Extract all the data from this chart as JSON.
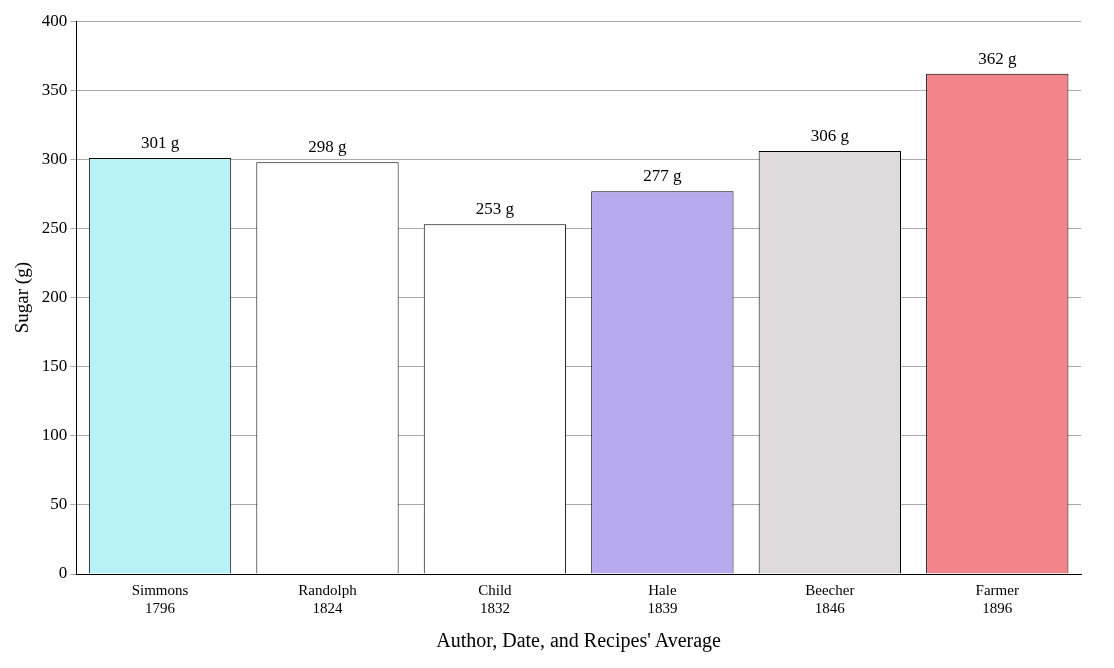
{
  "chart_data": {
    "type": "bar",
    "xlabel": "Author, Date, and Recipes' Average",
    "ylabel": "Sugar (g)",
    "categories": [
      "Simmons\n1796",
      "Randolph\n1824",
      "Child\n1832",
      "Hale\n1839",
      "Beecher\n1846",
      "Farmer\n1896"
    ],
    "values": [
      301,
      298,
      253,
      277,
      306,
      362
    ],
    "colors": [
      "#b8f2f6",
      "#ffffff",
      "#ffffff",
      "#b9aaf0",
      "#dedadb",
      "#f2848a"
    ],
    "value_labels": [
      "301 g",
      "298 g",
      "253 g",
      "277 g",
      "306 g",
      "362 g"
    ],
    "ylim": [
      0,
      400
    ],
    "yticks": [
      0,
      50,
      100,
      150,
      200,
      250,
      300,
      350,
      400
    ],
    "grid": "y",
    "legend": false
  }
}
